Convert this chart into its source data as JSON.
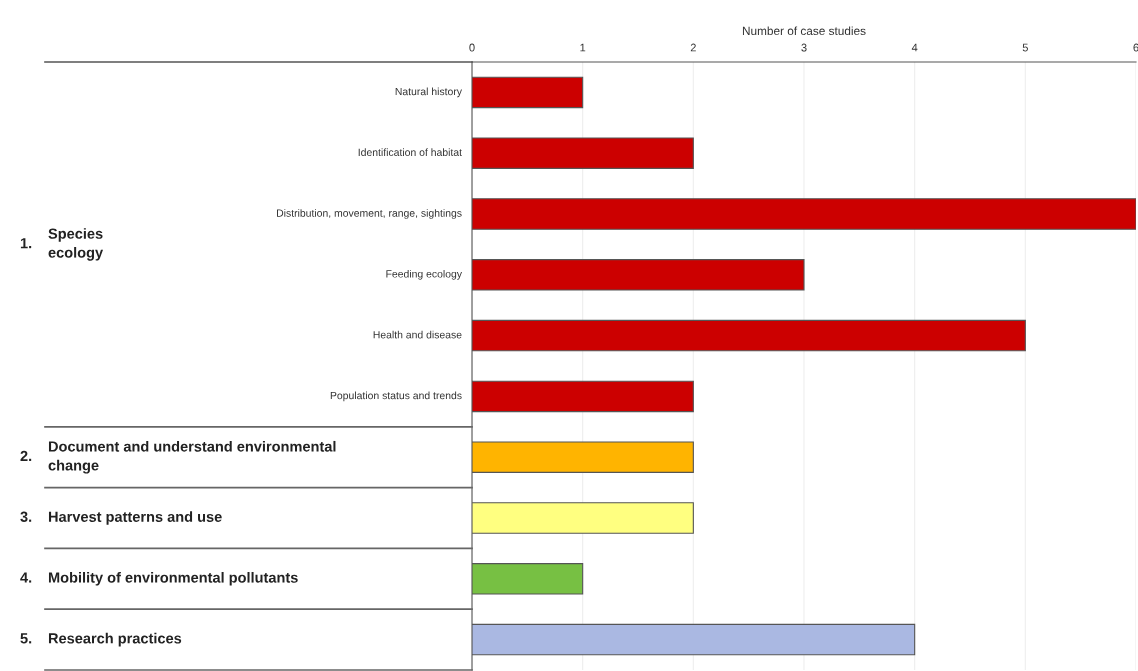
{
  "chart_data": {
    "type": "bar",
    "orientation": "horizontal",
    "xlabel": "Number of case studies",
    "categories": [
      "Natural history",
      "Identification of habitat",
      "Distribution, movement, range, sightings",
      "Feeding ecology",
      "Health and disease",
      "Population status and trends",
      "2. Document and understand environmental\nchange",
      "3. Harvest patterns and use",
      "4. Mobility of environmental pollutants",
      "5. Research practices"
    ],
    "values": [
      1,
      2,
      6,
      3,
      5,
      2,
      2,
      2,
      1,
      4
    ],
    "colors": [
      "#cc0000",
      "#cc0000",
      "#cc0000",
      "#cc0000",
      "#cc0000",
      "#cc0000",
      "#ffb400",
      "#ffff80",
      "#77c043",
      "#aab8e2"
    ],
    "annotations": [
      "1. Species\necology"
    ],
    "xlim": [
      0,
      6
    ],
    "xticks": [
      0,
      1,
      2,
      3,
      4,
      5,
      6
    ],
    "grid": "x"
  }
}
